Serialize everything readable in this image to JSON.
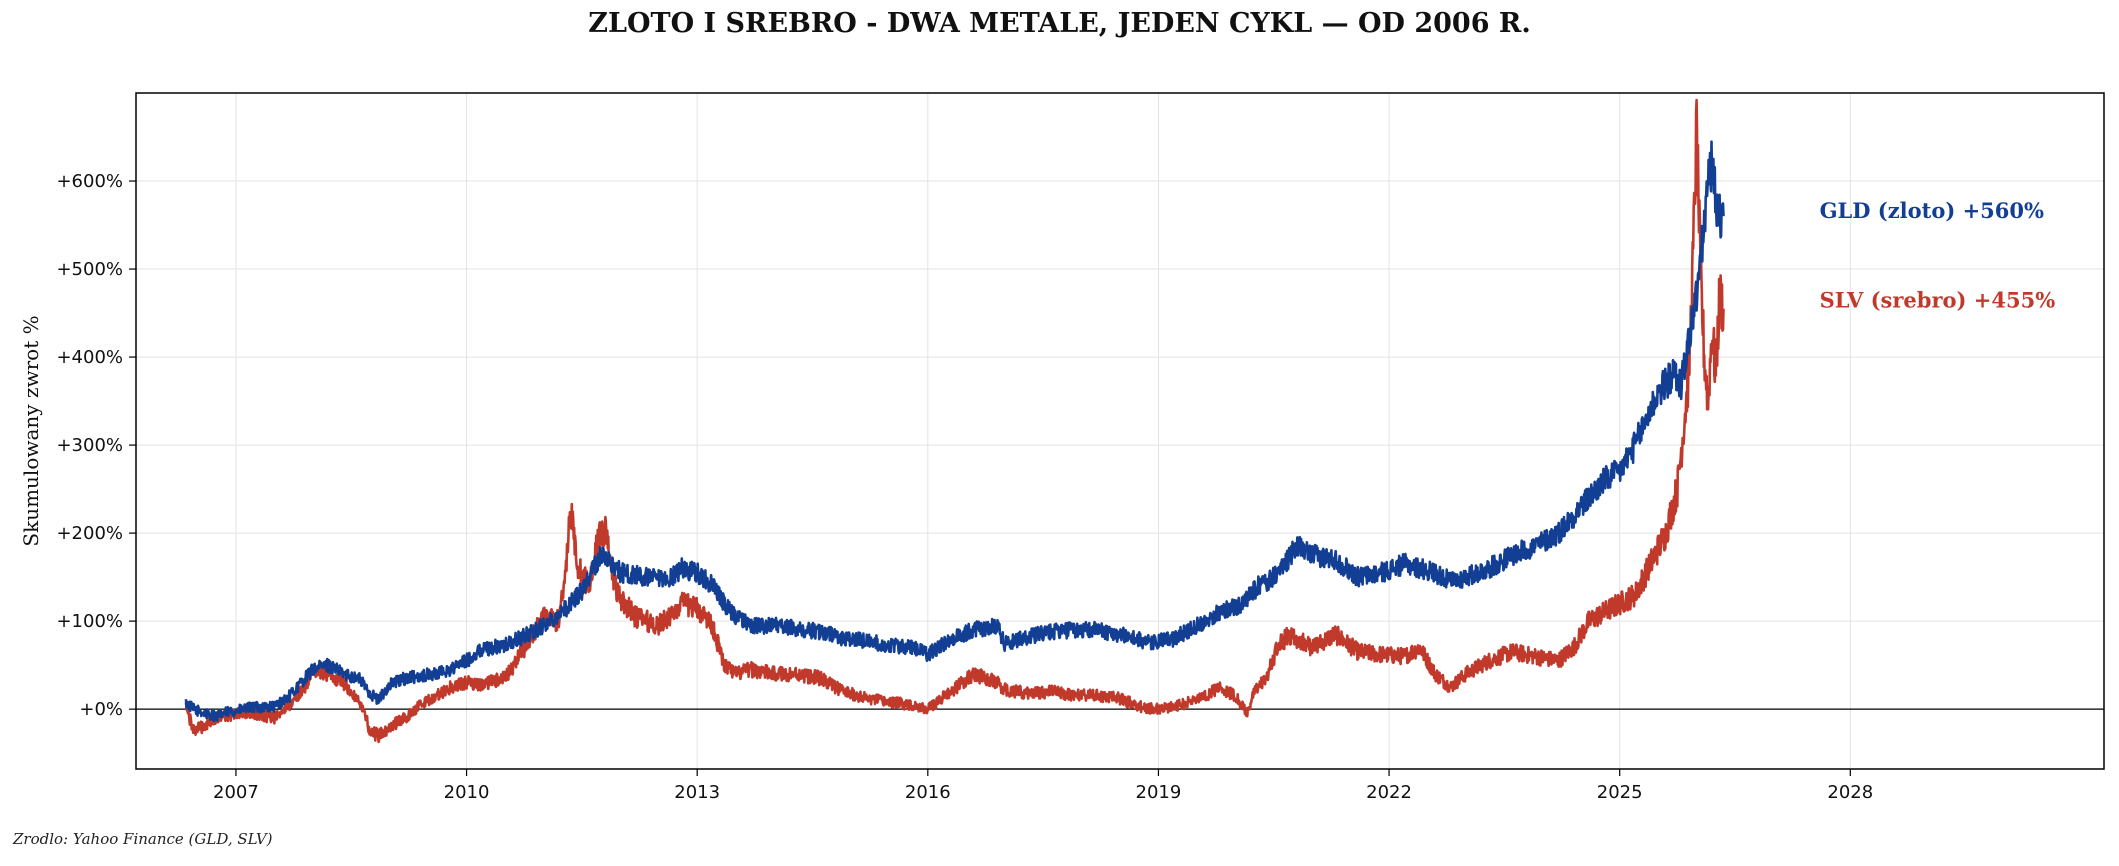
{
  "page": {
    "title": "ZLOTO I SREBRO - DWA METALE, JEDEN CYKL — OD 2006 R.",
    "source": "Zrodlo: Yahoo Finance (GLD, SLV)"
  },
  "chart_data": {
    "type": "line",
    "title": "ZLOTO I SREBRO - DWA METALE, JEDEN CYKL — OD 2006 R.",
    "xlabel": "",
    "ylabel": "Skumulowany zwrot %",
    "xlim": [
      2005.7,
      2031.3
    ],
    "ylim": [
      -68,
      700
    ],
    "x_ticks": [
      2007,
      2010,
      2013,
      2016,
      2019,
      2022,
      2025,
      2028
    ],
    "x_tick_labels": [
      "2007",
      "2010",
      "2013",
      "2016",
      "2019",
      "2022",
      "2025",
      "2028"
    ],
    "y_ticks": [
      0,
      100,
      200,
      300,
      400,
      500,
      600
    ],
    "y_tick_labels": [
      "+0%",
      "+100%",
      "+200%",
      "+300%",
      "+400%",
      "+500%",
      "+600%"
    ],
    "grid": true,
    "zero_line": true,
    "series": [
      {
        "name": "GLD (zloto)",
        "color": "#123f94",
        "end_label": "GLD (zloto)  +560%",
        "x": [
          2006.35,
          2006.45,
          2006.6,
          2006.75,
          2006.9,
          2007.0,
          2007.2,
          2007.5,
          2007.7,
          2007.9,
          2008.0,
          2008.2,
          2008.4,
          2008.6,
          2008.75,
          2008.85,
          2009.0,
          2009.2,
          2009.4,
          2009.6,
          2009.8,
          2010.0,
          2010.2,
          2010.5,
          2010.8,
          2011.0,
          2011.3,
          2011.5,
          2011.65,
          2011.75,
          2011.9,
          2012.0,
          2012.3,
          2012.6,
          2012.8,
          2013.0,
          2013.2,
          2013.35,
          2013.5,
          2013.7,
          2014.0,
          2014.3,
          2014.6,
          2014.9,
          2015.2,
          2015.5,
          2015.8,
          2016.0,
          2016.3,
          2016.6,
          2016.9,
          2017.0,
          2017.3,
          2017.6,
          2017.9,
          2018.2,
          2018.5,
          2018.7,
          2018.9,
          2019.2,
          2019.4,
          2019.6,
          2019.8,
          2020.1,
          2020.3,
          2020.5,
          2020.6,
          2020.8,
          2021.0,
          2021.3,
          2021.6,
          2021.9,
          2022.2,
          2022.4,
          2022.6,
          2022.8,
          2023.0,
          2023.3,
          2023.6,
          2023.9,
          2024.2,
          2024.4,
          2024.6,
          2024.8,
          2025.0,
          2025.2,
          2025.35,
          2025.5,
          2025.7,
          2025.8,
          2025.9,
          2026.0,
          2026.05,
          2026.1,
          2026.15,
          2026.2,
          2026.25,
          2026.3,
          2026.35
        ],
        "values": [
          7,
          0,
          -5,
          -8,
          -3,
          -2,
          2,
          3,
          15,
          35,
          45,
          50,
          40,
          35,
          18,
          10,
          28,
          35,
          38,
          40,
          45,
          55,
          68,
          72,
          85,
          95,
          115,
          135,
          160,
          175,
          165,
          155,
          150,
          145,
          160,
          155,
          140,
          120,
          105,
          95,
          95,
          92,
          88,
          80,
          78,
          72,
          70,
          62,
          80,
          90,
          95,
          75,
          82,
          88,
          90,
          90,
          85,
          80,
          75,
          80,
          90,
          100,
          110,
          120,
          140,
          150,
          160,
          185,
          175,
          170,
          150,
          155,
          165,
          160,
          155,
          145,
          150,
          160,
          175,
          185,
          200,
          220,
          240,
          260,
          270,
          300,
          330,
          360,
          380,
          370,
          420,
          470,
          510,
          550,
          600,
          620,
          580,
          560,
          560
        ]
      },
      {
        "name": "SLV (srebro)",
        "color": "#c0392b",
        "end_label": "SLV (srebro)  +455%",
        "x": [
          2006.35,
          2006.45,
          2006.6,
          2006.75,
          2006.9,
          2007.0,
          2007.2,
          2007.5,
          2007.7,
          2007.9,
          2008.0,
          2008.2,
          2008.4,
          2008.6,
          2008.75,
          2008.85,
          2009.0,
          2009.2,
          2009.4,
          2009.6,
          2009.8,
          2010.0,
          2010.2,
          2010.5,
          2010.8,
          2011.0,
          2011.2,
          2011.3,
          2011.35,
          2011.45,
          2011.6,
          2011.7,
          2011.8,
          2011.9,
          2012.0,
          2012.2,
          2012.5,
          2012.8,
          2013.0,
          2013.2,
          2013.35,
          2013.5,
          2013.7,
          2014.0,
          2014.3,
          2014.6,
          2014.9,
          2015.2,
          2015.5,
          2015.8,
          2016.0,
          2016.3,
          2016.6,
          2016.9,
          2017.0,
          2017.3,
          2017.6,
          2017.9,
          2018.2,
          2018.5,
          2018.8,
          2019.0,
          2019.3,
          2019.6,
          2019.8,
          2020.0,
          2020.15,
          2020.25,
          2020.4,
          2020.55,
          2020.7,
          2021.0,
          2021.3,
          2021.6,
          2021.9,
          2022.2,
          2022.4,
          2022.6,
          2022.8,
          2023.0,
          2023.3,
          2023.6,
          2023.9,
          2024.2,
          2024.4,
          2024.6,
          2024.8,
          2025.0,
          2025.2,
          2025.4,
          2025.6,
          2025.75,
          2025.9,
          2025.95,
          2026.0,
          2026.05,
          2026.1,
          2026.15,
          2026.2,
          2026.25,
          2026.3,
          2026.35
        ],
        "values": [
          3,
          -25,
          -18,
          -10,
          -8,
          -5,
          -5,
          -10,
          5,
          25,
          45,
          40,
          30,
          10,
          -25,
          -30,
          -20,
          -10,
          5,
          15,
          25,
          30,
          28,
          35,
          75,
          105,
          100,
          170,
          230,
          160,
          140,
          190,
          205,
          150,
          125,
          105,
          95,
          120,
          115,
          95,
          50,
          40,
          45,
          40,
          40,
          35,
          20,
          12,
          8,
          5,
          0,
          20,
          40,
          30,
          22,
          18,
          20,
          16,
          15,
          12,
          2,
          0,
          5,
          15,
          25,
          15,
          -5,
          20,
          35,
          70,
          85,
          70,
          85,
          65,
          62,
          60,
          70,
          40,
          25,
          40,
          55,
          65,
          60,
          55,
          70,
          100,
          110,
          120,
          130,
          165,
          200,
          250,
          380,
          500,
          660,
          500,
          400,
          350,
          430,
          380,
          470,
          455
        ]
      }
    ]
  }
}
